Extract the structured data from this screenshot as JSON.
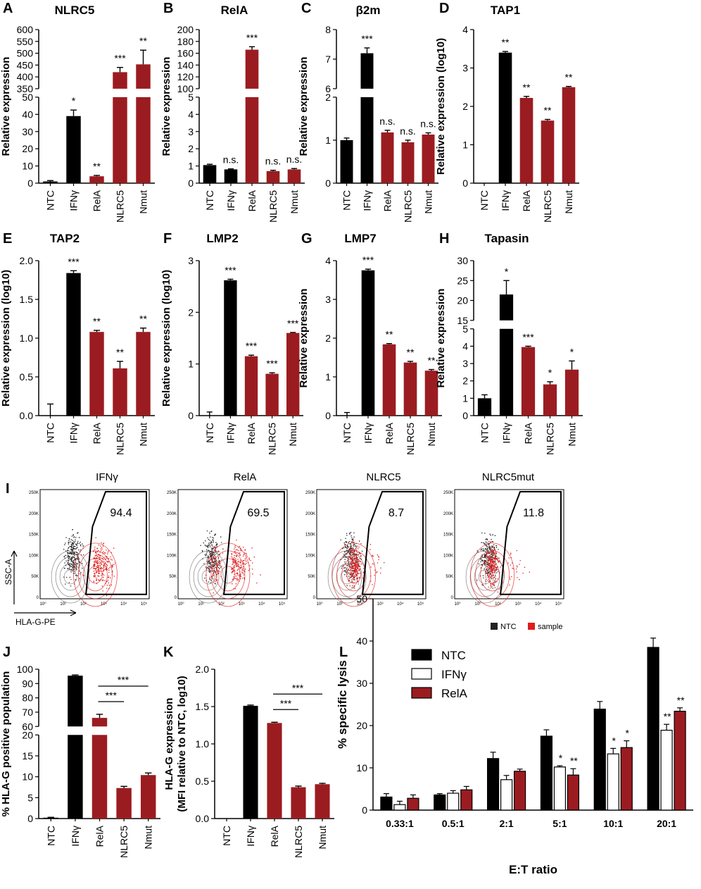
{
  "colors": {
    "ntc": "#000000",
    "ifng": "#000000",
    "treatment": "#9b1c20",
    "open": "#ffffff",
    "flow_sample": "#e01b1b",
    "flow_ntc": "#222222"
  },
  "chart_data": [
    {
      "panel": "A",
      "type": "bar",
      "title": "NLRC5",
      "ylabel": "Relative expression",
      "categories": [
        "NTC",
        "IFNγ",
        "RelA",
        "NLRC5",
        "Nmut"
      ],
      "values": [
        1,
        39,
        4,
        420,
        453
      ],
      "errors": [
        0.5,
        3.5,
        0.5,
        20,
        60
      ],
      "annotations": [
        "",
        "*",
        "**",
        "***",
        "**"
      ],
      "broken_axis": true,
      "lower_ylim": [
        0,
        50
      ],
      "lower_ticks": [
        "0",
        "10",
        "20",
        "30",
        "40",
        "50"
      ],
      "upper_ylim": [
        350,
        600
      ],
      "upper_ticks": [
        "350",
        "400",
        "450",
        "500",
        "550",
        "600"
      ]
    },
    {
      "panel": "B",
      "type": "bar",
      "title": "RelA",
      "ylabel": "Relative expression",
      "categories": [
        "NTC",
        "IFNγ",
        "RelA",
        "NLRC5",
        "Nmut"
      ],
      "values": [
        1.05,
        0.8,
        166,
        0.7,
        0.8
      ],
      "errors": [
        0.05,
        0.03,
        5,
        0.05,
        0.05
      ],
      "annotations": [
        "",
        "n.s.",
        "***",
        "n.s.",
        "n.s."
      ],
      "broken_axis": true,
      "lower_ylim": [
        0,
        5
      ],
      "lower_ticks": [
        "0",
        "1",
        "2",
        "3",
        "4",
        "5"
      ],
      "upper_ylim": [
        100,
        200
      ],
      "upper_ticks": [
        "100",
        "120",
        "140",
        "160",
        "180",
        "200"
      ]
    },
    {
      "panel": "C",
      "type": "bar",
      "title": "β2m",
      "ylabel": "Relative expression",
      "categories": [
        "NTC",
        "IFNγ",
        "RelA",
        "NLRC5",
        "Nmut"
      ],
      "values": [
        1.0,
        7.2,
        1.18,
        0.95,
        1.13
      ],
      "errors": [
        0.05,
        0.18,
        0.05,
        0.05,
        0.04
      ],
      "annotations": [
        "",
        "***",
        "n.s.",
        "n.s.",
        "n.s."
      ],
      "broken_axis": true,
      "lower_ylim": [
        0,
        2
      ],
      "lower_ticks": [
        "0",
        "1",
        "2"
      ],
      "upper_ylim": [
        6,
        8
      ],
      "upper_ticks": [
        "6",
        "7",
        "8"
      ]
    },
    {
      "panel": "D",
      "type": "bar",
      "title": "TAP1",
      "ylabel": "Relative expression (log10)",
      "categories": [
        "NTC",
        "IFNγ",
        "RelA",
        "NLRC5",
        "Nmut"
      ],
      "values": [
        0,
        3.4,
        2.22,
        1.63,
        2.5
      ],
      "errors": [
        0,
        0.03,
        0.04,
        0.03,
        0.02
      ],
      "annotations": [
        "",
        "**",
        "**",
        "**",
        "**"
      ],
      "ylim": [
        0,
        4
      ],
      "ticks": [
        "0",
        "1",
        "2",
        "3",
        "4"
      ]
    },
    {
      "panel": "E",
      "type": "bar",
      "title": "TAP2",
      "ylabel": "Relative expression (log10)",
      "categories": [
        "NTC",
        "IFNγ",
        "RelA",
        "NLRC5",
        "Nmut"
      ],
      "values": [
        0,
        1.84,
        1.08,
        0.61,
        1.08
      ],
      "errors": [
        0.15,
        0.03,
        0.02,
        0.09,
        0.05
      ],
      "annotations": [
        "",
        "***",
        "**",
        "**",
        "**"
      ],
      "ylim": [
        0,
        2
      ],
      "ticks": [
        "0.0",
        "0.5",
        "1.0",
        "1.5",
        "2.0"
      ]
    },
    {
      "panel": "F",
      "type": "bar",
      "title": "LMP2",
      "ylabel": "Relative expression (log10)",
      "categories": [
        "NTC",
        "IFNγ",
        "RelA",
        "NLRC5",
        "Nmut"
      ],
      "values": [
        0,
        2.62,
        1.15,
        0.81,
        1.6
      ],
      "errors": [
        0.07,
        0.02,
        0.02,
        0.02,
        0.01
      ],
      "annotations": [
        "",
        "***",
        "***",
        "***",
        "***"
      ],
      "ylim": [
        0,
        3
      ],
      "ticks": [
        "0",
        "1",
        "2",
        "3"
      ]
    },
    {
      "panel": "G",
      "type": "bar",
      "title": "LMP7",
      "ylabel": "Relative expression",
      "categories": [
        "NTC",
        "IFNγ",
        "RelA",
        "NLRC5",
        "Nmut"
      ],
      "values": [
        0,
        3.75,
        1.84,
        1.37,
        1.16
      ],
      "errors": [
        0.08,
        0.03,
        0.02,
        0.03,
        0.03
      ],
      "annotations": [
        "",
        "***",
        "**",
        "**",
        "**"
      ],
      "ylim": [
        0,
        4
      ],
      "ticks": [
        "0",
        "1",
        "2",
        "3",
        "4"
      ]
    },
    {
      "panel": "H",
      "type": "bar",
      "title": "Tapasin",
      "ylabel": "Relative expression",
      "categories": [
        "NTC",
        "IFNγ",
        "RelA",
        "NLRC5",
        "Nmut"
      ],
      "values": [
        1.0,
        21.5,
        3.95,
        1.8,
        2.65
      ],
      "errors": [
        0.2,
        3.5,
        0.05,
        0.15,
        0.5
      ],
      "annotations": [
        "",
        "*",
        "***",
        "*",
        "*"
      ],
      "broken_axis": true,
      "lower_ylim": [
        0,
        5
      ],
      "lower_ticks": [
        "0",
        "1",
        "2",
        "3",
        "4",
        "5"
      ],
      "upper_ylim": [
        15,
        30
      ],
      "upper_ticks": [
        "15",
        "20",
        "25",
        "30"
      ]
    },
    {
      "panel": "J",
      "type": "bar",
      "title": "",
      "ylabel": "% HLA-G positive population",
      "categories": [
        "NTC",
        "IFNγ",
        "RelA",
        "NLRC5",
        "Nmut"
      ],
      "values": [
        0.2,
        95.5,
        66,
        7.3,
        10.4
      ],
      "errors": [
        0.1,
        0.5,
        2.5,
        0.4,
        0.5
      ],
      "annotations": [
        "",
        "",
        "",
        "",
        ""
      ],
      "comparisons": [
        {
          "from": 2,
          "to": 3,
          "label": "***"
        },
        {
          "from": 2,
          "to": 4,
          "label": "***"
        }
      ],
      "broken_axis": true,
      "lower_ylim": [
        0,
        20
      ],
      "lower_ticks": [
        "0",
        "5",
        "10",
        "15",
        "20"
      ],
      "upper_ylim": [
        60,
        100
      ],
      "upper_ticks": [
        "60",
        "70",
        "80",
        "90",
        "100"
      ]
    },
    {
      "panel": "K",
      "type": "bar",
      "title": "",
      "ylabel": "HLA-G expression (MFI relative to NTC, log10)",
      "ylabel_lines": [
        "HLA-G expression",
        "(MFI relative to NTC, log10)"
      ],
      "categories": [
        "NTC",
        "IFNγ",
        "RelA",
        "NLRC5",
        "Nmut"
      ],
      "values": [
        0,
        1.51,
        1.28,
        0.42,
        0.46
      ],
      "errors": [
        0,
        0.01,
        0.01,
        0.015,
        0.012
      ],
      "annotations": [
        "",
        "",
        "",
        "",
        ""
      ],
      "comparisons": [
        {
          "from": 2,
          "to": 3,
          "label": "***"
        },
        {
          "from": 2,
          "to": 4,
          "label": "***"
        }
      ],
      "ylim": [
        0,
        2
      ],
      "ticks": [
        "0.0",
        "0.5",
        "1.0",
        "1.5",
        "2.0"
      ]
    },
    {
      "panel": "L",
      "type": "grouped_bar",
      "title": "",
      "xlabel": "E:T ratio",
      "ylabel": "% specific lysis",
      "categories": [
        "0.33:1",
        "0.5:1",
        "2:1",
        "5:1",
        "10:1",
        "20:1"
      ],
      "ylim": [
        0,
        50
      ],
      "ticks": [
        "0",
        "10",
        "20",
        "30",
        "40",
        "50"
      ],
      "legend": {
        "position": "top-left",
        "entries": [
          "NTC",
          "IFNγ",
          "RelA"
        ]
      },
      "series": [
        {
          "name": "NTC",
          "values": [
            3.1,
            3.6,
            12.2,
            17.5,
            23.9,
            38.5
          ],
          "errors": [
            0.8,
            0.3,
            1.5,
            1.5,
            1.8,
            2.2
          ],
          "annotations": [
            "",
            "",
            "",
            "",
            "",
            ""
          ]
        },
        {
          "name": "IFNγ",
          "values": [
            1.3,
            4.0,
            7.2,
            10.2,
            13.3,
            18.9
          ],
          "errors": [
            0.8,
            0.6,
            1.0,
            0.3,
            1.3,
            1.4
          ],
          "annotations": [
            "",
            "",
            "",
            "*",
            "*",
            "**"
          ]
        },
        {
          "name": "RelA",
          "values": [
            2.8,
            4.8,
            9.2,
            8.3,
            14.8,
            23.4
          ],
          "errors": [
            0.8,
            0.8,
            0.5,
            1.5,
            1.6,
            0.8
          ],
          "annotations": [
            "",
            "",
            "",
            "**",
            "*",
            "**"
          ]
        }
      ]
    }
  ],
  "flow": {
    "label": "I",
    "y_axis_label": "SSC-A",
    "x_axis_label": "HLA-G-PE",
    "y_ticks": [
      "250K",
      "200K",
      "150K",
      "100K",
      "50K",
      "0"
    ],
    "x_ticks": [
      "10⁰",
      "10¹",
      "10²",
      "10³",
      "10⁴",
      "10⁵"
    ],
    "plots": [
      {
        "title": "IFNγ",
        "value": "94.4",
        "fraction": 0.944
      },
      {
        "title": "RelA",
        "value": "69.5",
        "fraction": 0.695
      },
      {
        "title": "NLRC5",
        "value": "8.7",
        "fraction": 0.087
      },
      {
        "title": "NLRC5mut",
        "value": "11.8",
        "fraction": 0.118
      }
    ],
    "legend": [
      {
        "label": "NTC"
      },
      {
        "label": "sample"
      }
    ]
  }
}
